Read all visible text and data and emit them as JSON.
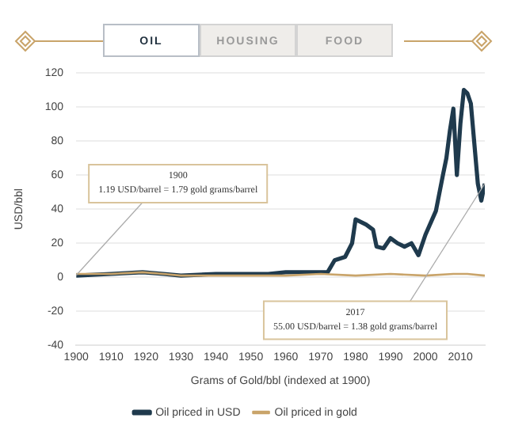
{
  "chart_data": {
    "type": "line",
    "xlabel": "Grams of Gold/bbl (indexed at 1900)",
    "ylabel": "USD/bbl",
    "xlim": [
      1900,
      2017
    ],
    "xticks": [
      1900,
      1910,
      1920,
      1930,
      1940,
      1950,
      1960,
      1970,
      1980,
      1990,
      2000,
      2010
    ],
    "ylim": [
      -40,
      120
    ],
    "yticks": [
      -40,
      -20,
      0,
      20,
      40,
      60,
      80,
      100,
      120
    ],
    "grid": "y",
    "legend": "bottom",
    "marker": "none",
    "line_style": "solid",
    "series": [
      {
        "name": "Oil priced in USD",
        "color": "#1f3a4d",
        "x": [
          1900,
          1910,
          1919,
          1925,
          1930,
          1940,
          1946,
          1955,
          1960,
          1970,
          1972,
          1974,
          1977,
          1979,
          1980,
          1983,
          1985,
          1986,
          1988,
          1990,
          1992,
          1994,
          1996,
          1998,
          2000,
          2003,
          2005,
          2006,
          2007,
          2008,
          2009,
          2010,
          2011,
          2012,
          2013,
          2015,
          2016,
          2017
        ],
        "values": [
          1,
          2,
          3,
          2,
          1,
          2,
          2,
          2,
          3,
          3,
          3,
          10,
          12,
          20,
          34,
          31,
          28,
          18,
          17,
          23,
          20,
          18,
          20,
          13,
          25,
          39,
          60,
          70,
          86,
          99,
          60,
          90,
          110,
          108,
          102,
          55,
          45,
          55
        ]
      },
      {
        "name": "Oil priced in gold",
        "color": "#c9a46a",
        "x": [
          1900,
          1910,
          1919,
          1925,
          1930,
          1940,
          1950,
          1960,
          1970,
          1980,
          1990,
          2000,
          2008,
          2012,
          2017
        ],
        "values": [
          2,
          2,
          3,
          2,
          1,
          1,
          1,
          1,
          2,
          1,
          2,
          1,
          2,
          2,
          1
        ]
      }
    ],
    "annotations": [
      "OIL",
      "HOUSING",
      "FOOD",
      {
        "text": "1900\n1.19 USD/barrel = 1.79 gold grams/barrel",
        "x": 1900,
        "y": 1.19
      },
      {
        "text": "2017\n55.00 USD/barrel = 1.38 gold grams/barrel",
        "x": 2017,
        "y": 55
      }
    ]
  }
}
